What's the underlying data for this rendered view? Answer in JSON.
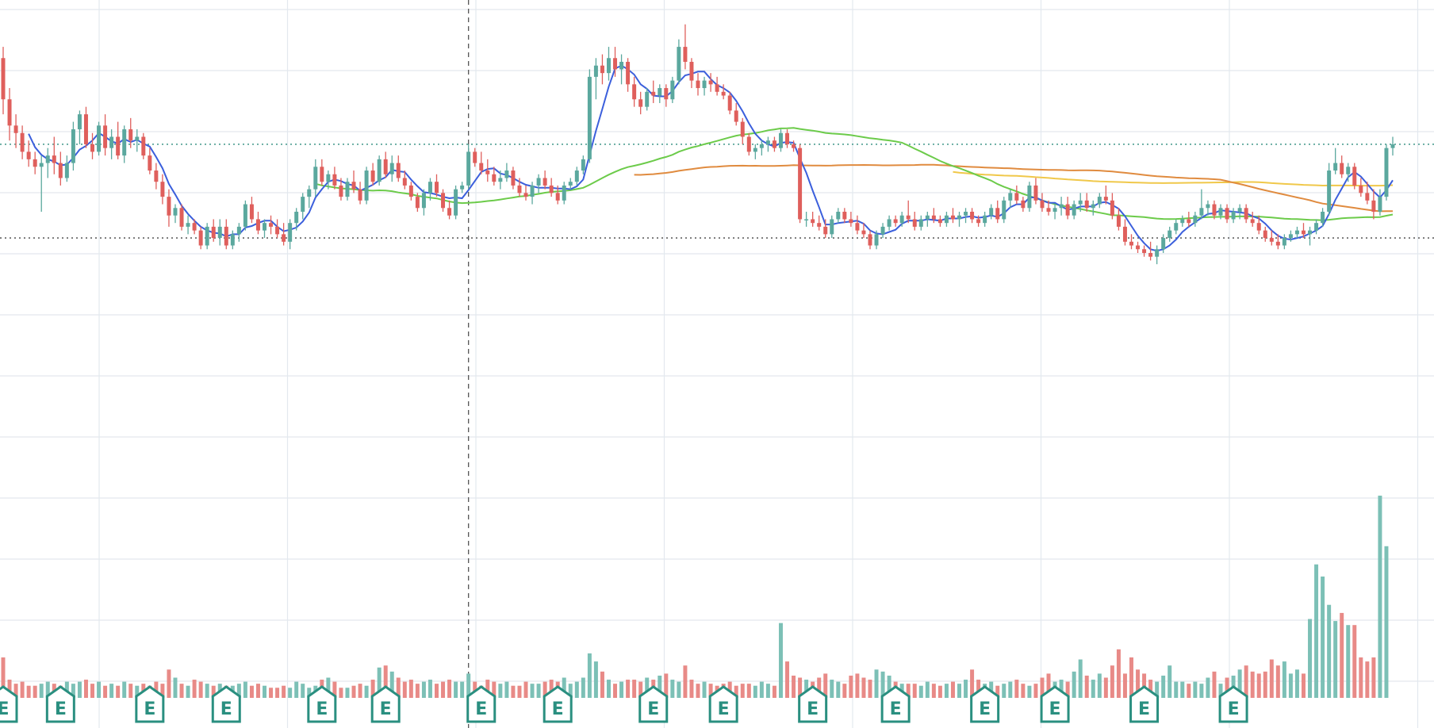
{
  "chart_data": {
    "type": "candlestick",
    "title": "",
    "price_range": [
      2.0,
      13.85
    ],
    "volume_max": 100,
    "colors": {
      "up": "#5ba89e",
      "down": "#df5f5c",
      "volume_up": "#7cc0b6",
      "volume_down": "#e88a87",
      "ma_short": "#3b5fdc",
      "ma_mid": "#6ccb4a",
      "ma_long": "#e08b3f",
      "ma_xlong": "#f0c84a",
      "grid": "#e3e8ee",
      "earnings": "#2a8f80"
    },
    "reference_lines": {
      "current_price": 10.0,
      "low_marker": 7.5,
      "crosshair_bar": 73
    },
    "earnings_marker": "E",
    "earnings_bars": [
      0,
      9,
      23,
      35,
      50,
      60,
      75,
      87,
      102,
      113,
      127,
      140,
      154,
      165,
      179,
      193
    ],
    "candles": [
      [
        12.3,
        12.6,
        10.8,
        11.2
      ],
      [
        11.2,
        11.5,
        10.1,
        10.5
      ],
      [
        10.5,
        10.8,
        9.9,
        10.3
      ],
      [
        10.3,
        10.5,
        9.6,
        9.8
      ],
      [
        9.8,
        10.1,
        9.4,
        9.6
      ],
      [
        9.6,
        9.8,
        9.2,
        9.4
      ],
      [
        9.4,
        9.7,
        8.2,
        9.5
      ],
      [
        9.5,
        9.9,
        9.1,
        9.7
      ],
      [
        9.7,
        10.2,
        9.2,
        9.5
      ],
      [
        9.5,
        9.8,
        8.9,
        9.1
      ],
      [
        9.1,
        9.7,
        9.0,
        9.5
      ],
      [
        9.5,
        10.6,
        9.3,
        10.4
      ],
      [
        10.4,
        10.9,
        10.0,
        10.8
      ],
      [
        10.8,
        11.0,
        9.9,
        10.0
      ],
      [
        10.0,
        10.3,
        9.6,
        9.8
      ],
      [
        9.8,
        10.6,
        9.7,
        10.5
      ],
      [
        10.5,
        10.8,
        9.7,
        9.9
      ],
      [
        9.9,
        10.4,
        9.6,
        10.2
      ],
      [
        10.2,
        10.6,
        9.6,
        9.7
      ],
      [
        9.7,
        10.5,
        9.5,
        10.4
      ],
      [
        10.4,
        10.7,
        9.9,
        10.1
      ],
      [
        10.1,
        10.4,
        9.8,
        10.2
      ],
      [
        10.2,
        10.3,
        9.6,
        9.7
      ],
      [
        9.7,
        9.9,
        9.2,
        9.3
      ],
      [
        9.3,
        9.5,
        8.8,
        9.0
      ],
      [
        9.0,
        9.2,
        8.4,
        8.6
      ],
      [
        8.6,
        8.8,
        7.8,
        8.1
      ],
      [
        8.1,
        8.4,
        7.9,
        8.3
      ],
      [
        8.3,
        8.4,
        7.7,
        7.8
      ],
      [
        7.8,
        8.1,
        7.6,
        7.9
      ],
      [
        7.9,
        8.0,
        7.6,
        7.7
      ],
      [
        7.7,
        7.8,
        7.2,
        7.3
      ],
      [
        7.3,
        7.9,
        7.2,
        7.8
      ],
      [
        7.8,
        8.0,
        7.4,
        7.5
      ],
      [
        7.5,
        8.0,
        7.3,
        7.8
      ],
      [
        7.8,
        8.0,
        7.2,
        7.3
      ],
      [
        7.3,
        7.7,
        7.2,
        7.6
      ],
      [
        7.6,
        7.9,
        7.4,
        7.8
      ],
      [
        7.8,
        8.5,
        7.7,
        8.4
      ],
      [
        8.4,
        8.6,
        7.9,
        8.0
      ],
      [
        8.0,
        8.2,
        7.6,
        7.7
      ],
      [
        7.7,
        8.0,
        7.5,
        7.9
      ],
      [
        7.9,
        8.1,
        7.6,
        7.8
      ],
      [
        7.8,
        8.0,
        7.5,
        7.6
      ],
      [
        7.6,
        7.9,
        7.3,
        7.4
      ],
      [
        7.4,
        8.0,
        7.2,
        7.9
      ],
      [
        7.9,
        8.3,
        7.7,
        8.2
      ],
      [
        8.2,
        8.7,
        8.0,
        8.6
      ],
      [
        8.6,
        8.9,
        8.3,
        8.8
      ],
      [
        8.8,
        9.6,
        8.6,
        9.4
      ],
      [
        9.4,
        9.6,
        8.9,
        9.0
      ],
      [
        9.0,
        9.3,
        8.8,
        9.2
      ],
      [
        9.2,
        9.4,
        8.8,
        8.9
      ],
      [
        8.9,
        9.1,
        8.5,
        8.6
      ],
      [
        8.6,
        9.1,
        8.5,
        9.0
      ],
      [
        9.0,
        9.3,
        8.7,
        8.8
      ],
      [
        8.8,
        9.0,
        8.4,
        8.5
      ],
      [
        8.5,
        9.4,
        8.4,
        9.3
      ],
      [
        9.3,
        9.5,
        8.9,
        9.0
      ],
      [
        9.0,
        9.7,
        8.9,
        9.6
      ],
      [
        9.6,
        9.8,
        9.1,
        9.2
      ],
      [
        9.2,
        9.7,
        9.0,
        9.5
      ],
      [
        9.5,
        9.7,
        9.0,
        9.1
      ],
      [
        9.1,
        9.3,
        8.8,
        8.9
      ],
      [
        8.9,
        9.0,
        8.5,
        8.6
      ],
      [
        8.6,
        8.7,
        8.2,
        8.3
      ],
      [
        8.3,
        8.8,
        8.1,
        8.7
      ],
      [
        8.7,
        9.1,
        8.5,
        9.0
      ],
      [
        9.0,
        9.2,
        8.6,
        8.7
      ],
      [
        8.7,
        8.8,
        8.2,
        8.3
      ],
      [
        8.3,
        8.5,
        8.0,
        8.1
      ],
      [
        8.1,
        8.9,
        8.0,
        8.8
      ],
      [
        8.8,
        9.0,
        8.7,
        8.9
      ],
      [
        8.9,
        10.0,
        8.8,
        9.8
      ],
      [
        9.8,
        9.9,
        9.4,
        9.5
      ],
      [
        9.5,
        9.8,
        9.2,
        9.3
      ],
      [
        9.3,
        9.6,
        9.0,
        9.2
      ],
      [
        9.2,
        9.4,
        8.9,
        9.0
      ],
      [
        9.0,
        9.3,
        8.8,
        9.1
      ],
      [
        9.1,
        9.5,
        9.0,
        9.3
      ],
      [
        9.3,
        9.4,
        8.8,
        8.9
      ],
      [
        8.9,
        9.1,
        8.6,
        8.7
      ],
      [
        8.7,
        8.9,
        8.5,
        8.6
      ],
      [
        8.6,
        9.0,
        8.4,
        8.9
      ],
      [
        8.9,
        9.2,
        8.7,
        9.1
      ],
      [
        9.1,
        9.3,
        8.8,
        8.9
      ],
      [
        8.9,
        9.1,
        8.6,
        8.7
      ],
      [
        8.7,
        8.9,
        8.4,
        8.5
      ],
      [
        8.5,
        9.0,
        8.4,
        8.9
      ],
      [
        8.9,
        9.1,
        8.8,
        9.0
      ],
      [
        9.0,
        9.4,
        8.9,
        9.3
      ],
      [
        9.3,
        9.7,
        9.2,
        9.6
      ],
      [
        9.6,
        12.0,
        9.5,
        11.8
      ],
      [
        11.8,
        12.3,
        11.2,
        12.1
      ],
      [
        12.1,
        12.4,
        11.6,
        11.9
      ],
      [
        11.9,
        12.6,
        11.7,
        12.3
      ],
      [
        12.3,
        12.6,
        11.8,
        12.0
      ],
      [
        12.0,
        12.4,
        11.6,
        12.2
      ],
      [
        12.2,
        12.3,
        11.4,
        11.6
      ],
      [
        11.6,
        11.8,
        11.0,
        11.2
      ],
      [
        11.2,
        11.4,
        10.8,
        11.0
      ],
      [
        11.0,
        11.5,
        10.9,
        11.4
      ],
      [
        11.4,
        11.7,
        11.1,
        11.3
      ],
      [
        11.3,
        11.6,
        11.1,
        11.5
      ],
      [
        11.5,
        11.6,
        11.0,
        11.2
      ],
      [
        11.2,
        11.8,
        11.1,
        11.7
      ],
      [
        11.7,
        12.8,
        11.6,
        12.6
      ],
      [
        12.6,
        13.2,
        12.0,
        12.2
      ],
      [
        12.2,
        12.3,
        11.5,
        11.7
      ],
      [
        11.7,
        11.9,
        11.3,
        11.5
      ],
      [
        11.5,
        11.8,
        11.3,
        11.7
      ],
      [
        11.7,
        11.9,
        11.4,
        11.6
      ],
      [
        11.6,
        11.8,
        11.3,
        11.4
      ],
      [
        11.4,
        11.6,
        11.2,
        11.3
      ],
      [
        11.3,
        11.4,
        10.8,
        10.9
      ],
      [
        10.9,
        11.1,
        10.5,
        10.6
      ],
      [
        10.6,
        10.7,
        10.0,
        10.2
      ],
      [
        10.2,
        10.3,
        9.7,
        9.8
      ],
      [
        9.8,
        10.0,
        9.6,
        9.9
      ],
      [
        9.9,
        10.1,
        9.7,
        10.0
      ],
      [
        10.0,
        10.2,
        9.8,
        10.1
      ],
      [
        10.1,
        10.2,
        9.8,
        9.9
      ],
      [
        9.9,
        10.4,
        9.8,
        10.3
      ],
      [
        10.3,
        10.4,
        9.9,
        10.0
      ],
      [
        10.0,
        10.1,
        9.8,
        9.9
      ],
      [
        9.9,
        10.0,
        7.9,
        8.0
      ],
      [
        8.0,
        8.2,
        7.8,
        8.0
      ],
      [
        8.0,
        8.2,
        7.8,
        7.9
      ],
      [
        7.9,
        8.1,
        7.7,
        7.8
      ],
      [
        7.8,
        8.0,
        7.5,
        7.6
      ],
      [
        7.6,
        8.1,
        7.5,
        8.0
      ],
      [
        8.0,
        8.3,
        7.9,
        8.2
      ],
      [
        8.2,
        8.3,
        7.9,
        8.0
      ],
      [
        8.0,
        8.2,
        7.8,
        7.9
      ],
      [
        7.9,
        8.1,
        7.6,
        7.7
      ],
      [
        7.7,
        7.9,
        7.5,
        7.6
      ],
      [
        7.6,
        7.7,
        7.2,
        7.3
      ],
      [
        7.3,
        7.7,
        7.2,
        7.6
      ],
      [
        7.6,
        7.9,
        7.5,
        7.8
      ],
      [
        7.8,
        8.1,
        7.7,
        8.0
      ],
      [
        8.0,
        8.1,
        7.8,
        7.9
      ],
      [
        7.9,
        8.2,
        7.8,
        8.1
      ],
      [
        8.1,
        8.5,
        7.9,
        8.0
      ],
      [
        8.0,
        8.2,
        7.7,
        7.8
      ],
      [
        7.8,
        8.1,
        7.7,
        8.0
      ],
      [
        8.0,
        8.2,
        7.8,
        8.1
      ],
      [
        8.1,
        8.3,
        7.9,
        8.0
      ],
      [
        8.0,
        8.1,
        7.8,
        7.9
      ],
      [
        7.9,
        8.2,
        7.8,
        8.1
      ],
      [
        8.1,
        8.3,
        7.9,
        8.0
      ],
      [
        8.0,
        8.2,
        7.8,
        8.1
      ],
      [
        8.1,
        8.3,
        7.9,
        8.2
      ],
      [
        8.2,
        8.3,
        7.9,
        8.0
      ],
      [
        8.0,
        8.1,
        7.8,
        7.9
      ],
      [
        7.9,
        8.2,
        7.8,
        8.1
      ],
      [
        8.1,
        8.4,
        8.0,
        8.3
      ],
      [
        8.3,
        8.5,
        7.9,
        8.0
      ],
      [
        8.0,
        8.6,
        7.9,
        8.5
      ],
      [
        8.5,
        8.8,
        8.3,
        8.7
      ],
      [
        8.7,
        8.9,
        8.4,
        8.5
      ],
      [
        8.5,
        8.6,
        8.2,
        8.3
      ],
      [
        8.3,
        9.0,
        8.2,
        8.9
      ],
      [
        8.9,
        9.1,
        8.4,
        8.5
      ],
      [
        8.5,
        8.7,
        8.2,
        8.3
      ],
      [
        8.3,
        8.5,
        8.1,
        8.2
      ],
      [
        8.2,
        8.4,
        8.0,
        8.3
      ],
      [
        8.3,
        8.6,
        8.1,
        8.4
      ],
      [
        8.4,
        8.6,
        8.0,
        8.1
      ],
      [
        8.1,
        8.5,
        8.0,
        8.4
      ],
      [
        8.4,
        8.7,
        8.2,
        8.5
      ],
      [
        8.5,
        8.7,
        8.2,
        8.3
      ],
      [
        8.3,
        8.5,
        8.1,
        8.4
      ],
      [
        8.4,
        8.7,
        8.3,
        8.6
      ],
      [
        8.6,
        8.9,
        8.4,
        8.5
      ],
      [
        8.5,
        8.7,
        8.0,
        8.1
      ],
      [
        8.1,
        8.3,
        7.7,
        7.8
      ],
      [
        7.8,
        8.0,
        7.3,
        7.4
      ],
      [
        7.4,
        7.6,
        7.2,
        7.3
      ],
      [
        7.3,
        7.4,
        7.1,
        7.2
      ],
      [
        7.2,
        7.3,
        7.0,
        7.1
      ],
      [
        7.1,
        7.4,
        6.9,
        7.0
      ],
      [
        7.0,
        7.3,
        6.8,
        7.2
      ],
      [
        7.2,
        7.6,
        7.1,
        7.5
      ],
      [
        7.5,
        7.8,
        7.4,
        7.7
      ],
      [
        7.7,
        8.0,
        7.6,
        7.9
      ],
      [
        7.9,
        8.1,
        7.8,
        8.0
      ],
      [
        8.0,
        8.2,
        7.8,
        7.9
      ],
      [
        7.9,
        8.2,
        7.8,
        8.1
      ],
      [
        8.1,
        8.8,
        8.0,
        8.3
      ],
      [
        8.3,
        8.5,
        8.1,
        8.4
      ],
      [
        8.4,
        8.5,
        8.0,
        8.1
      ],
      [
        8.1,
        8.4,
        8.0,
        8.3
      ],
      [
        8.3,
        8.4,
        7.9,
        8.0
      ],
      [
        8.0,
        8.3,
        7.9,
        8.2
      ],
      [
        8.2,
        8.4,
        8.0,
        8.3
      ],
      [
        8.3,
        8.4,
        7.9,
        8.0
      ],
      [
        8.0,
        8.2,
        7.8,
        7.9
      ],
      [
        7.9,
        8.1,
        7.6,
        7.7
      ],
      [
        7.7,
        7.8,
        7.4,
        7.5
      ],
      [
        7.5,
        7.7,
        7.3,
        7.4
      ],
      [
        7.4,
        7.6,
        7.2,
        7.3
      ],
      [
        7.3,
        7.6,
        7.2,
        7.5
      ],
      [
        7.5,
        7.7,
        7.4,
        7.6
      ],
      [
        7.6,
        7.8,
        7.5,
        7.7
      ],
      [
        7.7,
        7.9,
        7.5,
        7.6
      ],
      [
        7.6,
        7.8,
        7.3,
        7.7
      ],
      [
        7.7,
        8.0,
        7.6,
        7.9
      ],
      [
        7.9,
        8.3,
        7.8,
        8.2
      ],
      [
        8.2,
        9.5,
        8.1,
        9.3
      ],
      [
        9.3,
        9.9,
        9.2,
        9.5
      ],
      [
        9.5,
        9.7,
        9.1,
        9.2
      ],
      [
        9.2,
        9.5,
        9.0,
        9.4
      ],
      [
        9.4,
        9.5,
        8.8,
        8.9
      ],
      [
        8.9,
        9.1,
        8.6,
        8.7
      ],
      [
        8.7,
        9.0,
        8.4,
        8.5
      ],
      [
        8.5,
        8.8,
        8.0,
        8.2
      ],
      [
        8.2,
        8.8,
        8.1,
        8.6
      ],
      [
        8.6,
        10.0,
        8.5,
        9.9
      ],
      [
        9.9,
        10.2,
        9.7,
        10.0
      ]
    ],
    "volume": [
      20,
      9,
      7,
      8,
      6,
      6,
      7,
      8,
      7,
      6,
      8,
      7,
      8,
      9,
      7,
      8,
      6,
      7,
      6,
      8,
      7,
      6,
      7,
      6,
      8,
      7,
      14,
      10,
      7,
      6,
      9,
      8,
      7,
      6,
      7,
      6,
      6,
      7,
      8,
      6,
      7,
      6,
      5,
      5,
      6,
      5,
      8,
      7,
      5,
      6,
      9,
      10,
      8,
      5,
      5,
      6,
      7,
      6,
      9,
      15,
      16,
      13,
      10,
      8,
      9,
      7,
      8,
      9,
      7,
      8,
      9,
      8,
      8,
      12,
      8,
      6,
      9,
      8,
      7,
      8,
      6,
      6,
      8,
      7,
      7,
      8,
      9,
      8,
      10,
      7,
      8,
      10,
      22,
      18,
      13,
      9,
      7,
      8,
      9,
      9,
      8,
      10,
      9,
      11,
      12,
      9,
      8,
      16,
      9,
      7,
      8,
      7,
      6,
      7,
      8,
      6,
      7,
      7,
      6,
      8,
      7,
      6,
      37,
      18,
      11,
      10,
      9,
      8,
      10,
      12,
      9,
      8,
      7,
      11,
      12,
      10,
      9,
      14,
      13,
      11,
      8,
      7,
      7,
      7,
      6,
      8,
      7,
      6,
      7,
      8,
      7,
      9,
      14,
      9,
      7,
      8,
      6,
      7,
      8,
      9,
      7,
      6,
      7,
      10,
      12,
      8,
      9,
      8,
      13,
      19,
      11,
      9,
      12,
      10,
      16,
      24,
      12,
      20,
      14,
      12,
      9,
      8,
      11,
      16,
      8,
      8,
      7,
      8,
      7,
      10,
      13,
      7,
      10,
      11,
      14,
      16,
      13,
      12,
      13,
      19,
      16,
      18,
      12,
      14,
      12,
      39,
      66,
      60,
      46,
      38,
      42,
      36,
      36,
      20,
      18,
      20,
      100,
      75
    ]
  }
}
